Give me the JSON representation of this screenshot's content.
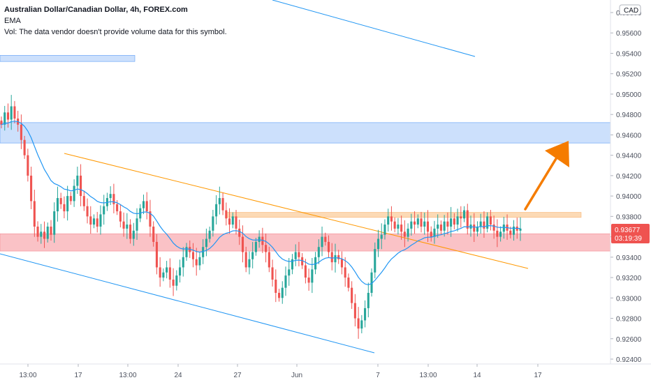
{
  "header": {
    "title": "Australian Dollar/Canadian Dollar, 4h, FOREX.com",
    "indicator": "EMA",
    "volume_note": "Vol: The data vendor doesn't provide volume data for this symbol."
  },
  "colors": {
    "up": "#26a69a",
    "down": "#ef5350",
    "ema": "#2196f3",
    "channel": "#2196f3",
    "orange_line": "#ff9800",
    "arrow": "#f57c00",
    "blue_zone": "#bbd6fb",
    "orange_zone": "#fbd3a8",
    "red_zone": "#f8a8ae",
    "price_label_bg": "#ef5350",
    "text": "#131722",
    "axis_text": "#4a4f5c"
  },
  "chart_data": {
    "type": "candlestick",
    "currency": "CAD",
    "last_price": "0.93677",
    "countdown": "03:19:39",
    "x_ticks": [
      "13:00",
      "17",
      "13:00",
      "24",
      "27",
      "Jun",
      "7",
      "13:00",
      "14",
      "17"
    ],
    "y_ticks": [
      "0.95800",
      "0.95600",
      "0.95400",
      "0.95200",
      "0.95000",
      "0.94800",
      "0.94600",
      "0.94400",
      "0.94200",
      "0.94000",
      "0.93800",
      "0.93600",
      "0.93400",
      "0.93200",
      "0.93000",
      "0.92800",
      "0.92600",
      "0.92400"
    ],
    "y_values": [
      0.958,
      0.956,
      0.954,
      0.952,
      0.95,
      0.948,
      0.946,
      0.944,
      0.942,
      0.94,
      0.938,
      0.936,
      0.934,
      0.932,
      0.93,
      0.928,
      0.926,
      0.924
    ],
    "closes": [
      0.947,
      0.9482,
      0.9475,
      0.9488,
      0.9476,
      0.947,
      0.9455,
      0.944,
      0.942,
      0.9395,
      0.937,
      0.936,
      0.9365,
      0.9358,
      0.937,
      0.9362,
      0.9385,
      0.9398,
      0.9392,
      0.9385,
      0.94,
      0.9395,
      0.941,
      0.942,
      0.94,
      0.939,
      0.938,
      0.9372,
      0.9378,
      0.937,
      0.9382,
      0.939,
      0.9398,
      0.9402,
      0.9392,
      0.9385,
      0.9375,
      0.9368,
      0.9372,
      0.9358,
      0.9366,
      0.9378,
      0.9388,
      0.9395,
      0.9385,
      0.937,
      0.9355,
      0.933,
      0.932,
      0.9325,
      0.933,
      0.9318,
      0.9312,
      0.9322,
      0.933,
      0.934,
      0.935,
      0.9345,
      0.9338,
      0.9332,
      0.934,
      0.935,
      0.9358,
      0.9366,
      0.938,
      0.9392,
      0.9398,
      0.9386,
      0.9378,
      0.9372,
      0.938,
      0.9368,
      0.936,
      0.9345,
      0.933,
      0.9338,
      0.9345,
      0.9355,
      0.936,
      0.9352,
      0.9345,
      0.933,
      0.9318,
      0.9305,
      0.93,
      0.931,
      0.9322,
      0.9328,
      0.9338,
      0.9345,
      0.934,
      0.9332,
      0.932,
      0.9315,
      0.9328,
      0.934,
      0.935,
      0.936,
      0.9355,
      0.9345,
      0.9335,
      0.9342,
      0.9338,
      0.933,
      0.932,
      0.931,
      0.9295,
      0.928,
      0.927,
      0.9278,
      0.929,
      0.9305,
      0.9325,
      0.9348,
      0.9358,
      0.9362,
      0.9372,
      0.938,
      0.9375,
      0.9368,
      0.9372,
      0.9365,
      0.936,
      0.9368,
      0.9375,
      0.9372,
      0.9378,
      0.937,
      0.9375,
      0.9365,
      0.936,
      0.9368,
      0.9372,
      0.9366,
      0.9375,
      0.937,
      0.9378,
      0.9372,
      0.938,
      0.9378,
      0.9386,
      0.9368,
      0.9372,
      0.9365,
      0.937,
      0.9375,
      0.9368,
      0.938,
      0.9372,
      0.9366,
      0.936,
      0.9365,
      0.9372,
      0.9366,
      0.9362,
      0.937,
      0.9366,
      0.9368
    ],
    "zones": [
      {
        "name": "upper-blue-zone",
        "y_top": 0.9472,
        "y_bottom": 0.9452
      },
      {
        "name": "top-left-blue-zone",
        "y_top": 0.9538,
        "y_bottom": 0.9532
      },
      {
        "name": "orange-resistance-zone",
        "y_top": 0.9384,
        "y_bottom": 0.9379
      },
      {
        "name": "red-support-zone",
        "y_top": 0.9363,
        "y_bottom": 0.9346
      }
    ]
  }
}
